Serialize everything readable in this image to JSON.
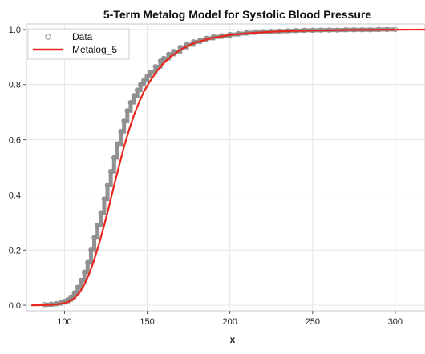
{
  "chart_data": {
    "type": "line",
    "title": "5-Term Metalog Model for Systolic Blood Pressure",
    "xlabel": "x",
    "ylabel": "",
    "xlim": [
      77,
      318
    ],
    "ylim": [
      -0.02,
      1.02
    ],
    "x_ticks": [
      100,
      150,
      200,
      250,
      300
    ],
    "y_ticks": [
      0.0,
      0.2,
      0.4,
      0.6,
      0.8,
      1.0
    ],
    "y_tick_labels": [
      "0.0",
      "0.2",
      "0.4",
      "0.6",
      "0.8",
      "1.0"
    ],
    "grid": true,
    "legend_position": "top-left",
    "colors": {
      "data_points": "#8c8c8c",
      "data_band": "#7f7f7f",
      "metalog": "#e8261b",
      "grid": "#e6e6e6",
      "frame": "#c8c8c8"
    },
    "series": [
      {
        "name": "Data",
        "kind": "scatter",
        "marker": "open-circle",
        "x": [
          88,
          92,
          95,
          98,
          100,
          102,
          104,
          106,
          108,
          110,
          112,
          114,
          116,
          118,
          120,
          122,
          124,
          126,
          128,
          130,
          132,
          134,
          136,
          138,
          140,
          142,
          144,
          146,
          148,
          150,
          152,
          155,
          158,
          160,
          163,
          166,
          170,
          174,
          178,
          182,
          186,
          190,
          195,
          200,
          205,
          210,
          215,
          220,
          225,
          230,
          235,
          240,
          245,
          250,
          255,
          260,
          265,
          270,
          275,
          280,
          285,
          290,
          295,
          300
        ],
        "y": [
          0.002,
          0.004,
          0.006,
          0.01,
          0.014,
          0.02,
          0.03,
          0.045,
          0.065,
          0.09,
          0.12,
          0.155,
          0.2,
          0.245,
          0.29,
          0.335,
          0.385,
          0.435,
          0.485,
          0.535,
          0.585,
          0.63,
          0.67,
          0.705,
          0.735,
          0.76,
          0.78,
          0.8,
          0.815,
          0.83,
          0.845,
          0.865,
          0.885,
          0.895,
          0.91,
          0.92,
          0.935,
          0.945,
          0.955,
          0.962,
          0.968,
          0.973,
          0.978,
          0.982,
          0.985,
          0.988,
          0.99,
          0.992,
          0.993,
          0.994,
          0.995,
          0.996,
          0.997,
          0.997,
          0.998,
          0.998,
          0.998,
          0.999,
          0.999,
          0.999,
          0.999,
          1.0,
          1.0,
          1.0
        ]
      },
      {
        "name": "Metalog_5",
        "kind": "line",
        "x": [
          80,
          90,
          95,
          100,
          103,
          106,
          109,
          112,
          115,
          118,
          121,
          124,
          127,
          130,
          133,
          136,
          139,
          142,
          145,
          148,
          152,
          156,
          160,
          165,
          170,
          175,
          180,
          190,
          200,
          210,
          220,
          230,
          240,
          250,
          260,
          270,
          280,
          290,
          300,
          310,
          318
        ],
        "y": [
          0.0,
          0.001,
          0.003,
          0.008,
          0.014,
          0.026,
          0.045,
          0.075,
          0.115,
          0.165,
          0.225,
          0.29,
          0.36,
          0.435,
          0.505,
          0.575,
          0.635,
          0.69,
          0.735,
          0.775,
          0.815,
          0.85,
          0.878,
          0.905,
          0.926,
          0.942,
          0.954,
          0.97,
          0.98,
          0.986,
          0.99,
          0.993,
          0.995,
          0.996,
          0.997,
          0.998,
          0.9985,
          0.999,
          0.9993,
          0.9995,
          0.9996
        ]
      }
    ]
  }
}
